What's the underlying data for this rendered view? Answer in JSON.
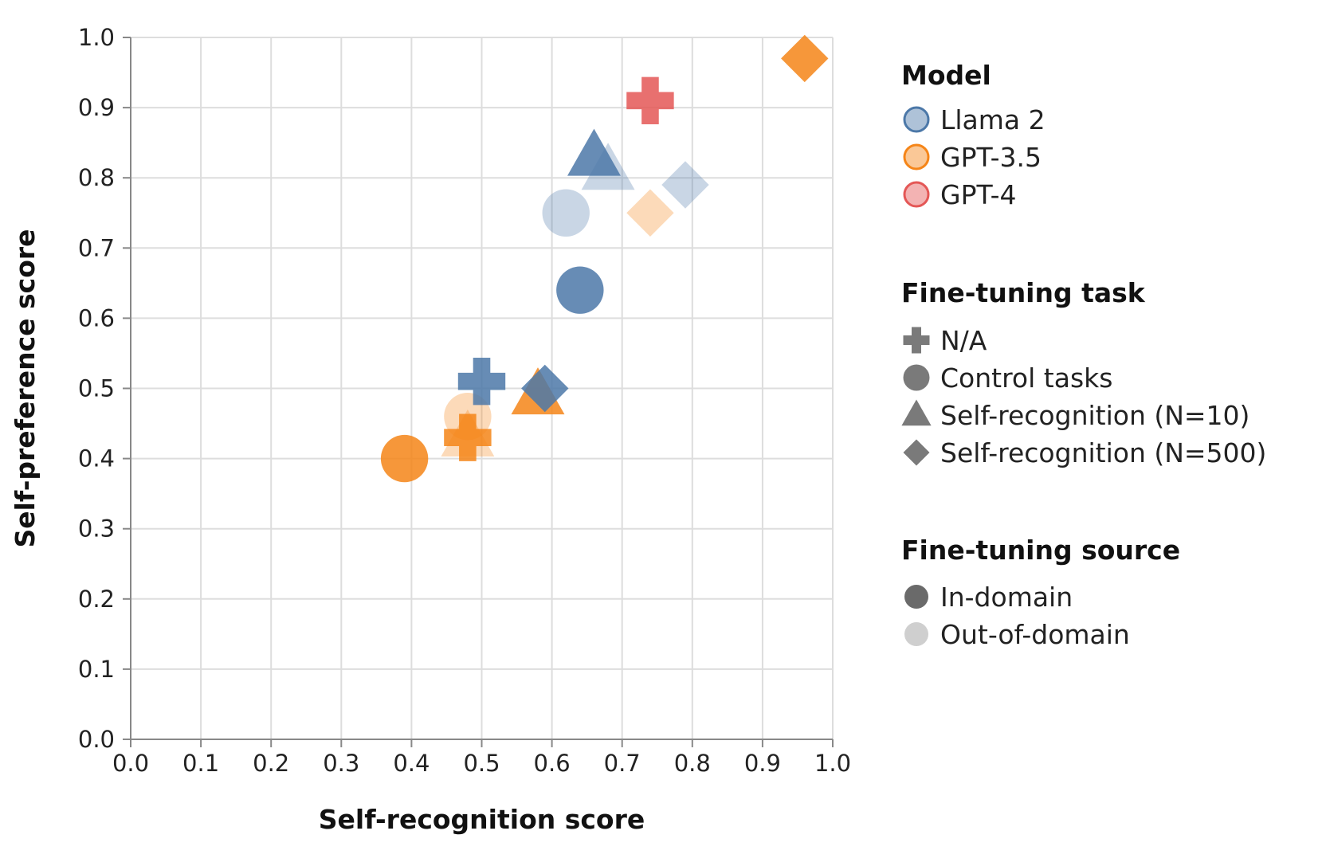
{
  "colors": {
    "Llama 2": "#4c78a8",
    "GPT-3.5": "#f58518",
    "GPT-4": "#e45756",
    "legend_shape": "#7a7a7a",
    "in_domain": "#6a6a6a",
    "out_of_domain": "#cfcfcf"
  },
  "chart_data": {
    "type": "scatter",
    "xlabel": "Self-recognition score",
    "ylabel": "Self-preference score",
    "xlim": [
      0.0,
      1.0
    ],
    "ylim": [
      0.0,
      1.0
    ],
    "xticks": [
      "0.0",
      "0.1",
      "0.2",
      "0.3",
      "0.4",
      "0.5",
      "0.6",
      "0.7",
      "0.8",
      "0.9",
      "1.0"
    ],
    "yticks": [
      "0.0",
      "0.1",
      "0.2",
      "0.3",
      "0.4",
      "0.5",
      "0.6",
      "0.7",
      "0.8",
      "0.9",
      "1.0"
    ],
    "grid": true,
    "points": [
      {
        "model": "GPT-3.5",
        "task": "Self-recognition (N=10)",
        "source": "Out-of-domain",
        "x": 0.48,
        "y": 0.43
      },
      {
        "model": "GPT-3.5",
        "task": "Control tasks",
        "source": "Out-of-domain",
        "x": 0.48,
        "y": 0.46
      },
      {
        "model": "GPT-3.5",
        "task": "Self-recognition (N=500)",
        "source": "Out-of-domain",
        "x": 0.74,
        "y": 0.75
      },
      {
        "model": "Llama 2",
        "task": "Control tasks",
        "source": "Out-of-domain",
        "x": 0.62,
        "y": 0.75
      },
      {
        "model": "Llama 2",
        "task": "Self-recognition (N=10)",
        "source": "Out-of-domain",
        "x": 0.68,
        "y": 0.81
      },
      {
        "model": "Llama 2",
        "task": "Self-recognition (N=500)",
        "source": "Out-of-domain",
        "x": 0.79,
        "y": 0.79
      },
      {
        "model": "GPT-3.5",
        "task": "Control tasks",
        "source": "In-domain",
        "x": 0.39,
        "y": 0.4
      },
      {
        "model": "GPT-3.5",
        "task": "N/A",
        "source": "In-domain",
        "x": 0.48,
        "y": 0.43
      },
      {
        "model": "GPT-3.5",
        "task": "Self-recognition (N=10)",
        "source": "In-domain",
        "x": 0.58,
        "y": 0.49
      },
      {
        "model": "Llama 2",
        "task": "N/A",
        "source": "In-domain",
        "x": 0.5,
        "y": 0.51
      },
      {
        "model": "Llama 2",
        "task": "Self-recognition (N=500)",
        "source": "In-domain",
        "x": 0.59,
        "y": 0.5
      },
      {
        "model": "Llama 2",
        "task": "Control tasks",
        "source": "In-domain",
        "x": 0.64,
        "y": 0.64
      },
      {
        "model": "Llama 2",
        "task": "Self-recognition (N=10)",
        "source": "In-domain",
        "x": 0.66,
        "y": 0.83
      },
      {
        "model": "GPT-4",
        "task": "N/A",
        "source": "In-domain",
        "x": 0.74,
        "y": 0.91
      },
      {
        "model": "GPT-3.5",
        "task": "Self-recognition (N=500)",
        "source": "In-domain",
        "x": 0.96,
        "y": 0.97
      }
    ]
  },
  "legend": {
    "model": {
      "title": "Model",
      "items": [
        {
          "label": "Llama 2",
          "color": "#4c78a8"
        },
        {
          "label": "GPT-3.5",
          "color": "#f58518"
        },
        {
          "label": "GPT-4",
          "color": "#e45756"
        }
      ]
    },
    "task": {
      "title": "Fine-tuning task",
      "items": [
        {
          "label": "N/A",
          "shape": "cross"
        },
        {
          "label": "Control tasks",
          "shape": "circle"
        },
        {
          "label": "Self-recognition (N=10)",
          "shape": "triangle"
        },
        {
          "label": "Self-recognition (N=500)",
          "shape": "diamond"
        }
      ]
    },
    "source": {
      "title": "Fine-tuning source",
      "items": [
        {
          "label": "In-domain",
          "color": "#6a6a6a"
        },
        {
          "label": "Out-of-domain",
          "color": "#cfcfcf"
        }
      ]
    }
  }
}
